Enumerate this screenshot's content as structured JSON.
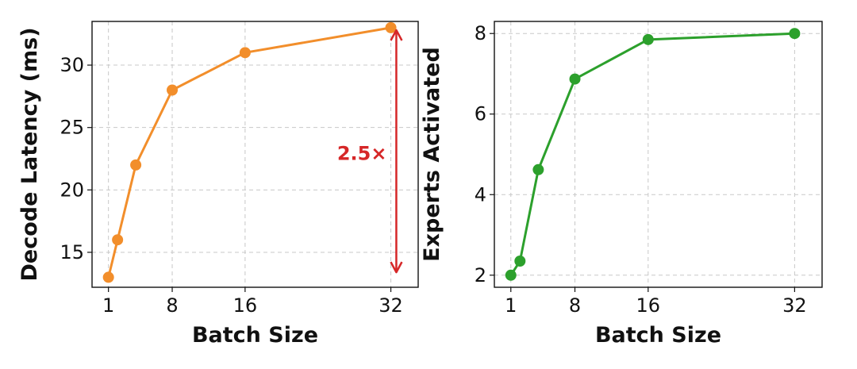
{
  "chart_data": [
    {
      "type": "line",
      "xlabel": "Batch Size",
      "ylabel": "Decode Latency (ms)",
      "x": [
        1,
        2,
        4,
        8,
        16,
        32
      ],
      "xticks": [
        1,
        8,
        16,
        32
      ],
      "xlim": [
        -0.8,
        35
      ],
      "yticks": [
        15,
        20,
        25,
        30
      ],
      "ylim": [
        12.2,
        33.5
      ],
      "grid": true,
      "series": [
        {
          "values": [
            13,
            16,
            22,
            28,
            31,
            33
          ],
          "color": "#f28e2b"
        }
      ],
      "annotation": {
        "text": "2.5×",
        "color": "#d62728",
        "arrow": {
          "x": 32.6,
          "y_from": 13.4,
          "y_to": 32.8
        }
      }
    },
    {
      "type": "line",
      "xlabel": "Batch Size",
      "ylabel": "Experts Activated",
      "x": [
        1,
        2,
        4,
        8,
        16,
        32
      ],
      "xticks": [
        1,
        8,
        16,
        32
      ],
      "xlim": [
        -0.8,
        35
      ],
      "yticks": [
        2,
        4,
        6,
        8
      ],
      "ylim": [
        1.7,
        8.3
      ],
      "grid": true,
      "series": [
        {
          "values": [
            2.0,
            2.35,
            4.62,
            6.87,
            7.85,
            8.0
          ],
          "color": "#2ca02c"
        }
      ]
    }
  ]
}
